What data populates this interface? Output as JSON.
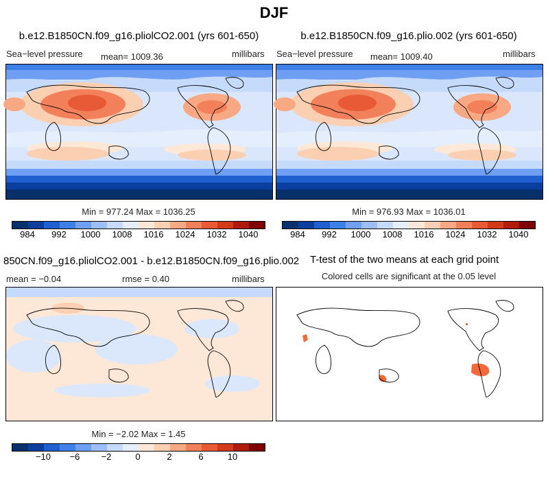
{
  "figure_title": "DJF",
  "panels": {
    "top_left": {
      "title": "b.e12.B1850CN.f09_g16.pliolCO2.001 (yrs 601-650)",
      "field": "Sea−level pressure",
      "mean_label": "mean= 1009.36",
      "units": "millibars",
      "minmax": "Min = 977.24 Max = 1036.25"
    },
    "top_right": {
      "title": "b.e12.B1850CN.f09_g16.plio.002 (yrs 601-650)",
      "field": "Sea−level pressure",
      "mean_label": "mean= 1009.40",
      "units": "millibars",
      "minmax": "Min = 976.93 Max = 1036.01"
    },
    "bottom_left": {
      "title": "850CN.f09_g16.pliolCO2.001 - b.e12.B1850CN.f09_g16.plio.002",
      "mean_label": "mean =  −0.04",
      "rmse_label": "rmse =    0.40",
      "units": "millibars",
      "minmax": "Min =  −2.02 Max =   1.45"
    },
    "bottom_right": {
      "title": "T-test of the two means at each grid point",
      "subtitle": "Colored cells are significant at the 0.05 level"
    }
  },
  "colorbar_slp": {
    "labels": [
      "984",
      "992",
      "1000",
      "1008",
      "1016",
      "1024",
      "1032",
      "1040"
    ],
    "colors": [
      "#08306b",
      "#0a3fa0",
      "#1f5fd0",
      "#3f7fe8",
      "#6f9ff2",
      "#9dbff7",
      "#c6dbfb",
      "#e4eefc",
      "#fde8d8",
      "#fbcfb2",
      "#f8a882",
      "#f2805a",
      "#e85a35",
      "#d23a1a",
      "#b01c0c",
      "#800000"
    ]
  },
  "colorbar_diff": {
    "labels": [
      "−10",
      "−6",
      "−2",
      "0",
      "2",
      "6",
      "10"
    ],
    "colors": [
      "#08306b",
      "#0a3fa0",
      "#1f5fd0",
      "#3f7fe8",
      "#6f9ff2",
      "#9dbff7",
      "#c6dbfb",
      "#e4eefc",
      "#fde8d8",
      "#fbcfb2",
      "#f8a882",
      "#f2805a",
      "#e85a35",
      "#d23a1a",
      "#b01c0c",
      "#800000"
    ]
  },
  "colors": {
    "significant": "#f26a3a",
    "diff_pos": "#fde8d8",
    "diff_neg": "#dbe8fb"
  }
}
